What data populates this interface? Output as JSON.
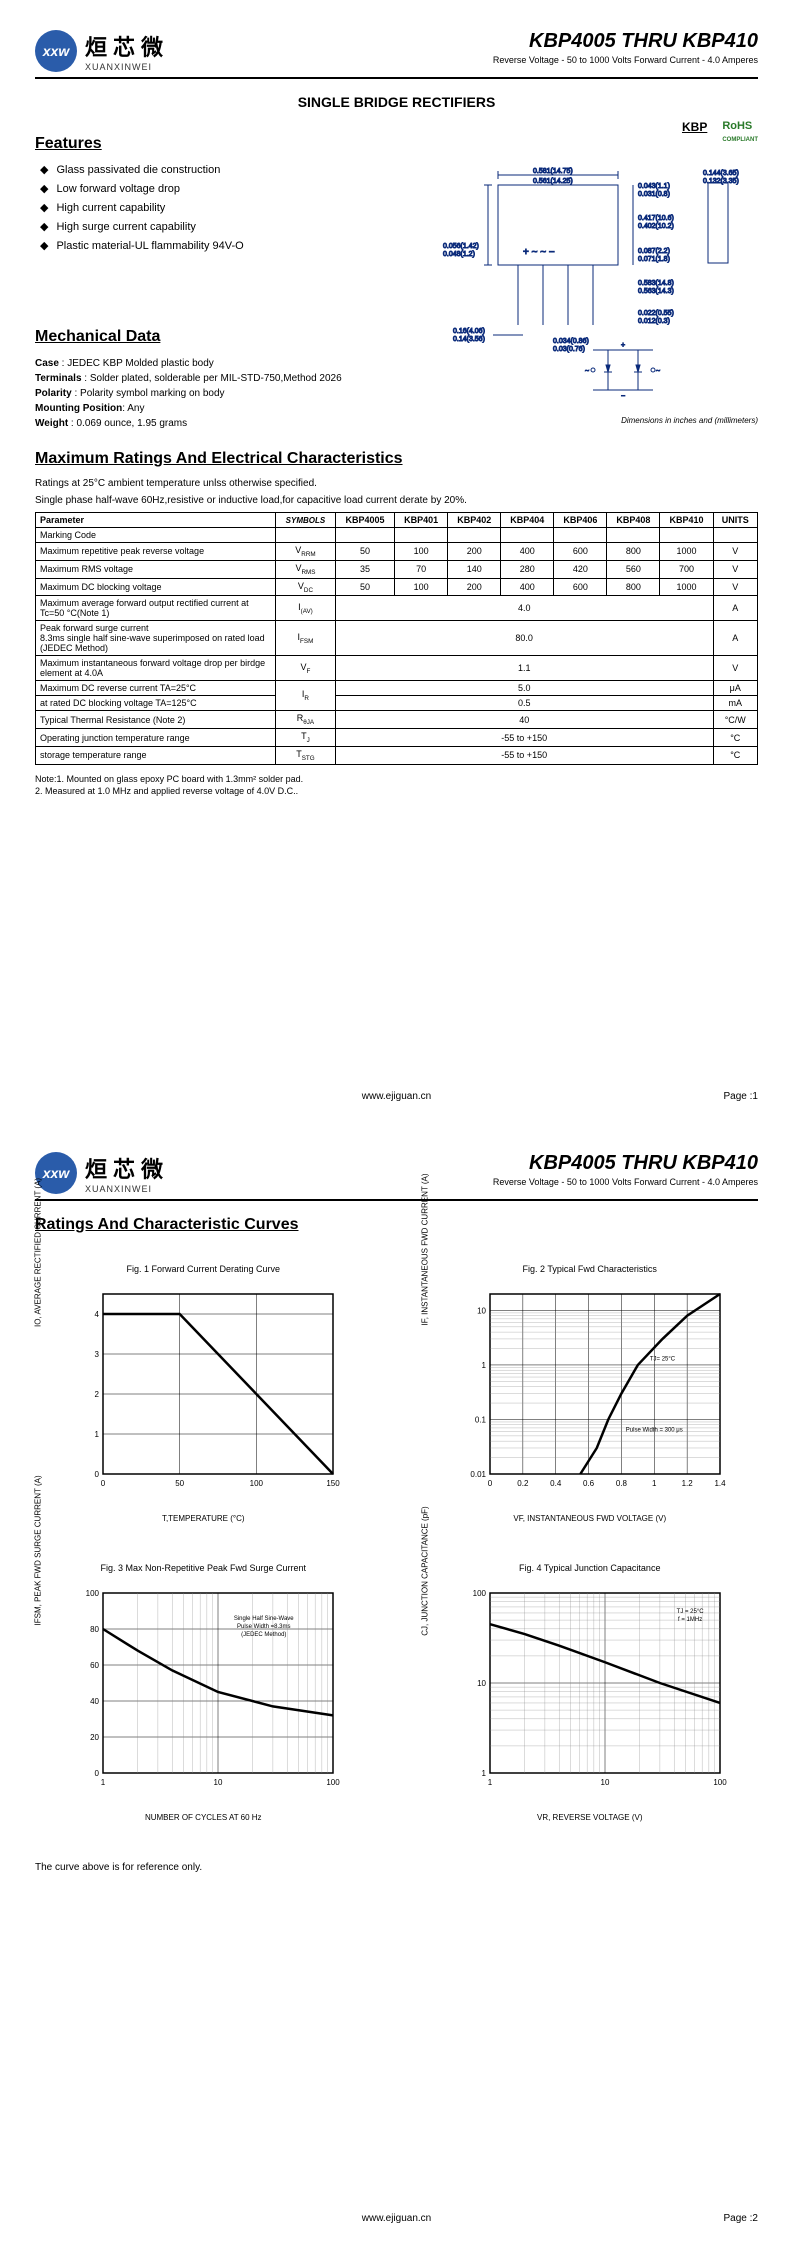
{
  "logo": {
    "abbr": "xxw",
    "cn": "烜芯微",
    "en": "XUANXINWEI"
  },
  "header": {
    "title": "KBP4005 THRU KBP410",
    "subtitle": "Reverse Voltage - 50 to 1000 Volts Forward Current - 4.0 Amperes"
  },
  "product_type": "SINGLE  BRIDGE RECTIFIERS",
  "features": {
    "heading": "Features",
    "items": [
      "Glass passivated die construction",
      "Low forward voltage drop",
      "High current capability",
      "High surge current capability",
      "Plastic material-UL flammability 94V-O"
    ],
    "kbp_badge": "KBP",
    "rohs": "RoHS",
    "rohs_sub": "COMPLIANT"
  },
  "package_drawing": {
    "dims": {
      "width_max": "0.581(14.75)",
      "width_min": "0.561(14.25)",
      "side_max": "0.056(1.42)",
      "side_min": "0.048(1.2)",
      "bottom_max": "0.16(4.06)",
      "bottom_min": "0.14(3.56)",
      "height_max": "0.043(1.1)",
      "height_min": "0.031(0.8)",
      "body_h_max": "0.417(10.6)",
      "body_h_min": "0.402(10.2)",
      "pin_sp_max": "0.087(2.2)",
      "pin_sp_min": "0.071(1.8)",
      "lead_max": "0.583(14.8)",
      "lead_min": "0.563(14.3)",
      "lead_w_max": "0.022(0.55)",
      "lead_w_min": "0.012(0.3)",
      "overall_max": "0.144(3.65)",
      "overall_min": "0.132(3.35)",
      "tab_max": "0.034(0.86)",
      "tab_min": "0.03(0.76)"
    },
    "note": "Dimensions in inches and (millimeters)"
  },
  "mechanical": {
    "heading": "Mechanical Data",
    "case": "JEDEC KBP Molded plastic body",
    "terminals": "Solder plated, solderable per MIL-STD-750,Method 2026",
    "polarity": "Polarity symbol  marking on body",
    "mounting": "Any",
    "weight": "0.069 ounce, 1.95 grams"
  },
  "ratings": {
    "heading": "Maximum Ratings And Electrical Characteristics",
    "intro1": "Ratings at 25°C ambient temperature unlss otherwise specified.",
    "intro2": "Single phase half-wave 60Hz,resistive or inductive load,for capacitive load current derate by 20%.",
    "columns": [
      "Parameter",
      "SYMBOLS",
      "KBP4005",
      "KBP401",
      "KBP402",
      "KBP404",
      "KBP406",
      "KBP408",
      "KBP410",
      "UNITS"
    ],
    "rows": [
      {
        "param": "Marking Code",
        "sym": "",
        "vals": [
          "",
          "",
          "",
          "",
          "",
          "",
          ""
        ],
        "unit": ""
      },
      {
        "param": "Maximum repetitive peak reverse voltage",
        "sym": "VRRM",
        "vals": [
          "50",
          "100",
          "200",
          "400",
          "600",
          "800",
          "1000"
        ],
        "unit": "V"
      },
      {
        "param": "Maximum RMS voltage",
        "sym": "VRMS",
        "vals": [
          "35",
          "70",
          "140",
          "280",
          "420",
          "560",
          "700"
        ],
        "unit": "V"
      },
      {
        "param": "Maximum DC blocking voltage",
        "sym": "VDC",
        "vals": [
          "50",
          "100",
          "200",
          "400",
          "600",
          "800",
          "1000"
        ],
        "unit": "V"
      },
      {
        "param": "Maximum average forward output rectified current at Tc=50 °C(Note 1)",
        "sym": "I(AV)",
        "span": "4.0",
        "unit": "A"
      },
      {
        "param": "Peak forward surge current\n8.3ms single half sine-wave superimposed on rated load (JEDEC Method)",
        "sym": "IFSM",
        "span": "80.0",
        "unit": "A"
      },
      {
        "param": "Maximum instantaneous forward voltage drop per birdge element at 4.0A",
        "sym": "VF",
        "span": "1.1",
        "unit": "V"
      },
      {
        "param": "Maximum DC reverse current       TA=25°C",
        "sym": "IR",
        "span": "5.0",
        "unit": "μA",
        "rowspan": true
      },
      {
        "param": "at rated DC blocking voltage       TA=125°C",
        "sym": "",
        "span": "0.5",
        "unit": "mA"
      },
      {
        "param": "Typical Thermal Resistance (Note 2)",
        "sym": "RθJA",
        "span": "40",
        "unit": "°C/W"
      },
      {
        "param": "Operating junction temperature range",
        "sym": "TJ",
        "span": "-55 to +150",
        "unit": "°C"
      },
      {
        "param": "storage temperature range",
        "sym": "TSTG",
        "span": "-55 to +150",
        "unit": "°C"
      }
    ],
    "notes": "Note:1. Mounted on  glass epoxy  PC board with 1.3mm² solder pad.\n         2. Measured at 1.0 MHz and applied reverse voltage of 4.0V D.C..",
    "footer_url": "www.ejiguan.cn",
    "page1": "Page :1",
    "page2": "Page :2"
  },
  "curves": {
    "heading": "Ratings And Characteristic Curves",
    "note": "The curve above is for reference only.",
    "charts": [
      {
        "title": "Fig. 1 Forward Current Derating Curve",
        "type": "line",
        "xscale": "linear",
        "yscale": "linear",
        "xlabel": "T,TEMPERATURE (°C)",
        "ylabel": "IO, AVERAGE RECTIFIED CURRENT (A)",
        "xlim": [
          0,
          150
        ],
        "xticks": [
          0,
          50,
          100,
          150
        ],
        "ylim": [
          0,
          4.5
        ],
        "yticks": [
          0,
          1.0,
          2.0,
          3.0,
          4.0
        ],
        "line_color": "#000000",
        "line_width": 2.5,
        "grid_color": "#000000",
        "bg": "#ffffff",
        "data": [
          [
            0,
            4.0
          ],
          [
            50,
            4.0
          ],
          [
            150,
            0
          ]
        ]
      },
      {
        "title": "Fig. 2  Typical Fwd Characteristics",
        "type": "line",
        "xscale": "linear",
        "yscale": "log",
        "xlabel": "VF, INSTANTANEOUS FWD VOLTAGE (V)",
        "ylabel": "IF, INSTANTANEOUS FWD CURRENT (A)",
        "xlim": [
          0,
          1.4
        ],
        "xticks": [
          0,
          0.2,
          0.4,
          0.6,
          0.8,
          1.0,
          1.2,
          1.4
        ],
        "ylim": [
          0.01,
          20
        ],
        "yticks": [
          0.01,
          0.1,
          1.0,
          10
        ],
        "line_color": "#000000",
        "line_width": 2.5,
        "grid_color": "#000000",
        "bg": "#ffffff",
        "annotations": [
          {
            "text": "TJ= 25°C",
            "x": 1.05,
            "y": 1.2
          },
          {
            "text": "Pulse Width = 300 μs",
            "x": 1.0,
            "y": 0.06
          }
        ],
        "data": [
          [
            0.55,
            0.01
          ],
          [
            0.65,
            0.03
          ],
          [
            0.72,
            0.1
          ],
          [
            0.8,
            0.3
          ],
          [
            0.9,
            1.0
          ],
          [
            1.05,
            3.0
          ],
          [
            1.2,
            8.0
          ],
          [
            1.4,
            20
          ]
        ]
      },
      {
        "title": "Fig. 3  Max Non-Repetitive Peak Fwd Surge Current",
        "type": "line",
        "xscale": "log",
        "yscale": "linear",
        "xlabel": "NUMBER OF CYCLES AT 60 Hz",
        "ylabel": "IFSM, PEAK FWD SURGE CURRENT (A)",
        "xlim": [
          1,
          100
        ],
        "xticks": [
          1,
          10,
          100
        ],
        "ylim": [
          0,
          100
        ],
        "yticks": [
          0,
          20,
          40,
          60,
          80,
          100
        ],
        "line_color": "#000000",
        "line_width": 2.5,
        "grid_color": "#000000",
        "bg": "#ffffff",
        "annotations": [
          {
            "text": "Single Half Sine-Wave\nPulse Width =8.3ms\n(JEDEC Method)",
            "x": 25,
            "y": 85
          }
        ],
        "data": [
          [
            1,
            80
          ],
          [
            2,
            68
          ],
          [
            4,
            57
          ],
          [
            10,
            45
          ],
          [
            30,
            37
          ],
          [
            100,
            32
          ]
        ]
      },
      {
        "title": "Fig. 4  Typical Junction Capacitance",
        "type": "line",
        "xscale": "log",
        "yscale": "log",
        "xlabel": "VR, REVERSE VOLTAGE (V)",
        "ylabel": "CJ, JUNCTION CAPACITANCE (pF)",
        "xlim": [
          1,
          100
        ],
        "xticks": [
          1,
          10,
          100
        ],
        "ylim": [
          1,
          100
        ],
        "yticks": [
          1,
          10,
          100
        ],
        "line_color": "#000000",
        "line_width": 2.5,
        "grid_color": "#000000",
        "bg": "#ffffff",
        "annotations": [
          {
            "text": "TJ = 25°C\nf = 1MHz",
            "x": 55,
            "y": 60
          }
        ],
        "data": [
          [
            1,
            45
          ],
          [
            2,
            35
          ],
          [
            4,
            26
          ],
          [
            10,
            17
          ],
          [
            30,
            10
          ],
          [
            100,
            6
          ]
        ]
      }
    ]
  }
}
